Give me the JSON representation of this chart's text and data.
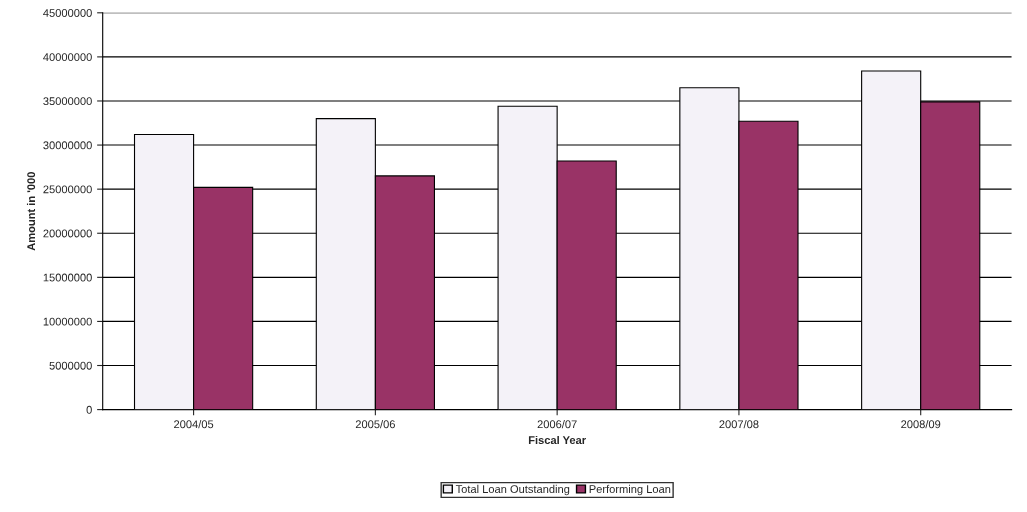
{
  "chart_data": {
    "type": "bar",
    "categories": [
      "2004/05",
      "2005/06",
      "2006/07",
      "2007/08",
      "2008/09"
    ],
    "series": [
      {
        "name": "Total Loan Outstanding",
        "color": "#f4f2f8",
        "values": [
          31200000,
          33000000,
          34400000,
          36500000,
          38400000
        ]
      },
      {
        "name": "Performing Loan",
        "color": "#993366",
        "values": [
          25200000,
          26500000,
          28200000,
          32700000,
          34900000
        ]
      }
    ],
    "xlabel": "Fiscal Year",
    "ylabel": "Amount in '000",
    "ylim": [
      0,
      45000000
    ],
    "yticks": [
      0,
      5000000,
      10000000,
      15000000,
      20000000,
      25000000,
      30000000,
      35000000,
      40000000,
      45000000
    ],
    "grid": "y",
    "legend": "bottom"
  }
}
